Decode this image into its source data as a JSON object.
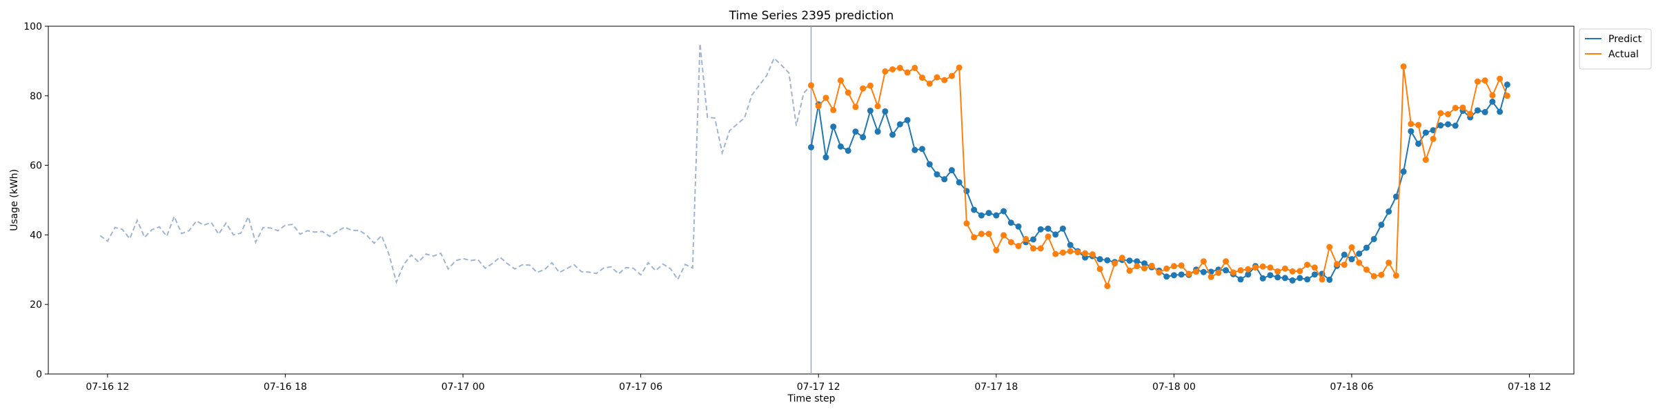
{
  "chart_data": {
    "type": "line",
    "title": "Time Series 2395 prediction",
    "xlabel": "Time step",
    "ylabel": "Usage (kWh)",
    "ylim": [
      0,
      100
    ],
    "yticks": [
      0,
      20,
      40,
      60,
      80,
      100
    ],
    "xlim": [
      "2024-07-16 10:00",
      "2024-07-18 13:30"
    ],
    "xticks": [
      {
        "t": "2024-07-16 12:00",
        "label": "07-16 12"
      },
      {
        "t": "2024-07-16 18:00",
        "label": "07-16 18"
      },
      {
        "t": "2024-07-17 00:00",
        "label": "07-17 00"
      },
      {
        "t": "2024-07-17 06:00",
        "label": "07-17 06"
      },
      {
        "t": "2024-07-17 12:00",
        "label": "07-17 12"
      },
      {
        "t": "2024-07-17 18:00",
        "label": "07-17 18"
      },
      {
        "t": "2024-07-18 00:00",
        "label": "07-18 00"
      },
      {
        "t": "2024-07-18 06:00",
        "label": "07-18 06"
      },
      {
        "t": "2024-07-18 12:00",
        "label": "07-18 12"
      }
    ],
    "forecast_start": "2024-07-17 11:45",
    "x_start": "2024-07-16 11:45",
    "step_minutes": 15,
    "grid": false,
    "legend_position": "top-right",
    "colors": {
      "history": "#a0b4d2",
      "predict": "#1f77b4",
      "actual": "#ff7f0e",
      "vline": "#8fa8d8"
    },
    "series": [
      {
        "name": "",
        "style": "dashed",
        "start": "2024-07-16 11:45",
        "values": [
          39.8,
          38.2,
          42.1,
          41.6,
          38.9,
          44.2,
          39.3,
          41.5,
          42.3,
          39.6,
          45.3,
          40.4,
          41.2,
          44.0,
          42.8,
          43.6,
          40.2,
          43.4,
          40.0,
          40.5,
          45.2,
          37.9,
          42.1,
          42.0,
          41.2,
          42.8,
          43.0,
          40.2,
          41.2,
          40.8,
          41.0,
          39.6,
          41.0,
          42.2,
          41.3,
          41.3,
          39.9,
          37.6,
          39.8,
          34.4,
          26.4,
          31.5,
          34.2,
          32.2,
          34.5,
          33.9,
          34.7,
          30.2,
          32.6,
          33.2,
          32.6,
          32.9,
          30.4,
          31.8,
          33.6,
          31.7,
          30.2,
          31.4,
          31.3,
          29.2,
          30.0,
          32.0,
          29.2,
          30.3,
          31.4,
          29.4,
          29.3,
          28.9,
          30.5,
          30.8,
          28.8,
          30.6,
          30.4,
          28.5,
          32.0,
          29.7,
          31.6,
          30.3,
          27.2,
          31.5,
          30.5,
          95.0,
          73.8,
          73.6,
          63.6,
          70.0,
          71.8,
          73.6,
          80.2,
          83.0,
          85.8,
          90.8,
          88.8,
          86.6,
          71.4,
          80.8,
          83.0
        ]
      },
      {
        "name": "Predict",
        "style": "solid-marker",
        "start": "2024-07-17 11:45",
        "values": [
          65.2,
          77.5,
          62.3,
          71.1,
          65.4,
          64.2,
          69.7,
          68.1,
          75.7,
          69.7,
          75.5,
          68.8,
          71.8,
          73.0,
          64.4,
          64.7,
          60.3,
          57.4,
          56.0,
          58.6,
          55.1,
          52.6,
          47.2,
          45.6,
          46.3,
          45.6,
          46.8,
          43.5,
          42.4,
          37.9,
          38.7,
          41.6,
          41.8,
          40.1,
          41.8,
          37.1,
          35.3,
          33.5,
          33.9,
          33.0,
          32.7,
          32.2,
          32.8,
          32.6,
          32.4,
          31.8,
          30.7,
          29.7,
          28.0,
          28.4,
          28.6,
          28.5,
          30.0,
          29.3,
          29.4,
          30.0,
          29.8,
          28.7,
          27.2,
          28.6,
          31.0,
          27.5,
          28.4,
          27.8,
          27.6,
          26.9,
          27.6,
          27.2,
          28.6,
          28.8,
          27.1,
          31.1,
          34.3,
          33.0,
          34.6,
          36.3,
          38.8,
          42.9,
          46.7,
          51.0,
          58.2,
          69.8,
          66.2,
          69.4,
          70.1,
          71.5,
          71.8,
          71.4,
          75.7,
          73.8,
          75.8,
          75.3,
          78.3,
          75.4,
          83.2
        ]
      },
      {
        "name": "Actual",
        "style": "solid-marker",
        "start": "2024-07-17 11:45",
        "values": [
          83.0,
          77.0,
          79.4,
          75.9,
          84.4,
          80.9,
          76.8,
          82.1,
          82.9,
          77.0,
          87.0,
          87.6,
          88.0,
          86.7,
          88.0,
          85.2,
          83.5,
          85.3,
          84.5,
          85.7,
          88.1,
          43.3,
          39.3,
          40.3,
          40.3,
          35.6,
          39.9,
          37.9,
          36.8,
          38.8,
          36.1,
          36.1,
          39.5,
          34.5,
          34.9,
          35.3,
          35.0,
          34.7,
          34.4,
          30.2,
          25.3,
          31.8,
          33.4,
          29.7,
          31.0,
          30.4,
          31.1,
          29.2,
          30.3,
          31.0,
          31.2,
          28.8,
          29.4,
          32.4,
          27.9,
          29.1,
          32.4,
          29.2,
          29.8,
          30.1,
          30.6,
          30.9,
          30.6,
          29.5,
          30.3,
          29.5,
          29.6,
          31.4,
          30.6,
          27.2,
          36.5,
          31.6,
          31.4,
          36.4,
          32.0,
          30.0,
          28.1,
          28.5,
          32.0,
          28.3,
          88.4,
          71.9,
          71.6,
          61.6,
          67.6,
          75.0,
          74.7,
          76.5,
          76.6,
          74.8,
          84.1,
          84.4,
          80.1,
          84.9,
          80.0
        ]
      }
    ]
  }
}
